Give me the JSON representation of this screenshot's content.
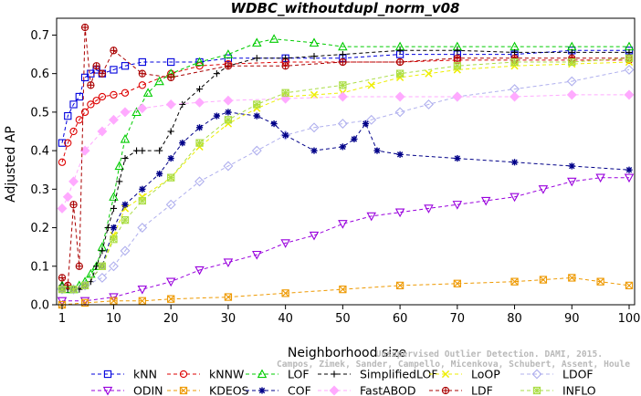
{
  "chart_data": {
    "type": "line",
    "title": "WDBC_withoutdupl_norm_v08",
    "xlabel": "Neighborhood size",
    "ylabel": "Adjusted AP",
    "xlim": [
      1,
      100
    ],
    "ylim": [
      0,
      0.72
    ],
    "xticks": [
      1,
      10,
      20,
      30,
      40,
      50,
      60,
      70,
      80,
      90,
      100
    ],
    "yticks": [
      0.0,
      0.1,
      0.2,
      0.3,
      0.4,
      0.5,
      0.6,
      0.7
    ],
    "grid": false,
    "legend_position": "bottom",
    "watermark": [
      "Campos, Zimek, Sander, Campello, Micenkova, Schubert, Assent, Houle",
      "Unsupervised Outlier Detection. DAMI, 2015."
    ],
    "series": [
      {
        "name": "kNN",
        "color": "#0000dd",
        "marker": "square",
        "x": [
          1,
          2,
          3,
          4,
          5,
          6,
          7,
          8,
          10,
          12,
          15,
          20,
          25,
          30,
          40,
          50,
          60,
          70,
          80,
          90,
          100
        ],
        "y": [
          0.42,
          0.49,
          0.52,
          0.54,
          0.59,
          0.6,
          0.61,
          0.6,
          0.61,
          0.62,
          0.63,
          0.63,
          0.63,
          0.64,
          0.64,
          0.64,
          0.65,
          0.65,
          0.65,
          0.66,
          0.66
        ]
      },
      {
        "name": "kNNW",
        "color": "#dd0000",
        "marker": "circle",
        "x": [
          1,
          2,
          3,
          4,
          5,
          6,
          7,
          8,
          10,
          12,
          15,
          20,
          25,
          30,
          40,
          50,
          60,
          70,
          80,
          90,
          100
        ],
        "y": [
          0.37,
          0.42,
          0.45,
          0.48,
          0.5,
          0.52,
          0.53,
          0.54,
          0.545,
          0.55,
          0.57,
          0.6,
          0.62,
          0.625,
          0.63,
          0.63,
          0.63,
          0.635,
          0.635,
          0.635,
          0.635
        ]
      },
      {
        "name": "LOF",
        "color": "#00cc00",
        "marker": "triangle-up",
        "x": [
          1,
          2,
          3,
          4,
          5,
          6,
          7,
          8,
          10,
          11,
          12,
          14,
          16,
          18,
          20,
          25,
          30,
          35,
          38,
          45,
          50,
          60,
          70,
          80,
          90,
          100
        ],
        "y": [
          0.05,
          0.04,
          0.04,
          0.05,
          0.06,
          0.08,
          0.1,
          0.15,
          0.28,
          0.36,
          0.43,
          0.5,
          0.55,
          0.58,
          0.6,
          0.63,
          0.65,
          0.68,
          0.69,
          0.68,
          0.67,
          0.67,
          0.67,
          0.67,
          0.67,
          0.67
        ]
      },
      {
        "name": "SimplifiedLOF",
        "color": "#000000",
        "marker": "plus",
        "x": [
          1,
          2,
          3,
          4,
          5,
          6,
          7,
          8,
          9,
          10,
          11,
          12,
          14,
          15,
          18,
          20,
          22,
          25,
          28,
          30,
          35,
          40,
          45,
          50,
          60,
          70,
          80,
          90,
          100
        ],
        "y": [
          0.05,
          0.04,
          0.04,
          0.04,
          0.05,
          0.06,
          0.1,
          0.14,
          0.2,
          0.25,
          0.32,
          0.38,
          0.4,
          0.4,
          0.4,
          0.45,
          0.52,
          0.56,
          0.6,
          0.62,
          0.64,
          0.64,
          0.645,
          0.65,
          0.66,
          0.66,
          0.655,
          0.655,
          0.655
        ]
      },
      {
        "name": "LoOP",
        "color": "#eeee00",
        "marker": "x",
        "x": [
          1,
          3,
          5,
          8,
          10,
          12,
          15,
          20,
          25,
          30,
          35,
          40,
          45,
          50,
          55,
          60,
          65,
          70,
          80,
          90,
          100
        ],
        "y": [
          0.04,
          0.04,
          0.05,
          0.1,
          0.18,
          0.25,
          0.28,
          0.33,
          0.41,
          0.47,
          0.51,
          0.54,
          0.545,
          0.55,
          0.57,
          0.59,
          0.6,
          0.61,
          0.62,
          0.625,
          0.63
        ]
      },
      {
        "name": "LDOF",
        "color": "#b0b0ee",
        "marker": "diamond",
        "x": [
          1,
          3,
          5,
          8,
          10,
          12,
          15,
          20,
          25,
          30,
          35,
          40,
          45,
          50,
          55,
          60,
          65,
          70,
          80,
          90,
          100
        ],
        "y": [
          0.04,
          0.04,
          0.05,
          0.07,
          0.1,
          0.14,
          0.2,
          0.26,
          0.32,
          0.36,
          0.4,
          0.44,
          0.46,
          0.47,
          0.48,
          0.5,
          0.52,
          0.54,
          0.56,
          0.58,
          0.61
        ]
      },
      {
        "name": "ODIN",
        "color": "#9900dd",
        "marker": "triangle-down",
        "x": [
          1,
          5,
          10,
          15,
          20,
          25,
          30,
          35,
          40,
          45,
          50,
          55,
          60,
          65,
          70,
          75,
          80,
          85,
          90,
          95,
          100
        ],
        "y": [
          0.01,
          0.01,
          0.02,
          0.04,
          0.06,
          0.09,
          0.11,
          0.13,
          0.16,
          0.18,
          0.21,
          0.23,
          0.24,
          0.25,
          0.26,
          0.27,
          0.28,
          0.3,
          0.32,
          0.33,
          0.33
        ]
      },
      {
        "name": "KDEOS",
        "color": "#ee9900",
        "marker": "square-x",
        "x": [
          1,
          5,
          10,
          15,
          20,
          30,
          40,
          50,
          60,
          70,
          80,
          85,
          90,
          95,
          100
        ],
        "y": [
          0.0,
          0.005,
          0.01,
          0.01,
          0.015,
          0.02,
          0.03,
          0.04,
          0.05,
          0.055,
          0.06,
          0.065,
          0.07,
          0.06,
          0.05
        ]
      },
      {
        "name": "COF",
        "color": "#000088",
        "marker": "asterisk",
        "x": [
          1,
          3,
          5,
          8,
          10,
          12,
          15,
          18,
          20,
          22,
          25,
          28,
          30,
          35,
          38,
          40,
          45,
          50,
          52,
          54,
          56,
          60,
          70,
          80,
          90,
          100
        ],
        "y": [
          0.04,
          0.04,
          0.05,
          0.1,
          0.2,
          0.26,
          0.3,
          0.34,
          0.38,
          0.42,
          0.46,
          0.49,
          0.5,
          0.49,
          0.47,
          0.44,
          0.4,
          0.41,
          0.43,
          0.47,
          0.4,
          0.39,
          0.38,
          0.37,
          0.36,
          0.35
        ]
      },
      {
        "name": "FastABOD",
        "color": "#ffaaff",
        "marker": "diamond-filled",
        "x": [
          1,
          2,
          3,
          5,
          8,
          10,
          12,
          15,
          20,
          25,
          30,
          40,
          50,
          60,
          70,
          80,
          90,
          100
        ],
        "y": [
          0.25,
          0.28,
          0.32,
          0.4,
          0.45,
          0.48,
          0.5,
          0.51,
          0.52,
          0.525,
          0.53,
          0.535,
          0.54,
          0.54,
          0.54,
          0.54,
          0.545,
          0.545
        ]
      },
      {
        "name": "LDF",
        "color": "#aa0000",
        "marker": "circle-plus",
        "x": [
          1,
          2,
          3,
          4,
          5,
          6,
          7,
          8,
          10,
          15,
          20,
          30,
          40,
          50,
          60,
          70,
          80,
          90,
          100
        ],
        "y": [
          0.07,
          0.05,
          0.26,
          0.1,
          0.72,
          0.57,
          0.62,
          0.6,
          0.66,
          0.6,
          0.59,
          0.62,
          0.62,
          0.63,
          0.63,
          0.64,
          0.64,
          0.64,
          0.64
        ]
      },
      {
        "name": "INFLO",
        "color": "#aadd44",
        "marker": "star-box",
        "x": [
          1,
          3,
          5,
          8,
          10,
          12,
          15,
          20,
          25,
          30,
          35,
          40,
          50,
          60,
          70,
          80,
          90,
          100
        ],
        "y": [
          0.04,
          0.04,
          0.05,
          0.1,
          0.17,
          0.22,
          0.27,
          0.33,
          0.42,
          0.48,
          0.52,
          0.55,
          0.57,
          0.6,
          0.62,
          0.63,
          0.63,
          0.64
        ]
      }
    ]
  }
}
